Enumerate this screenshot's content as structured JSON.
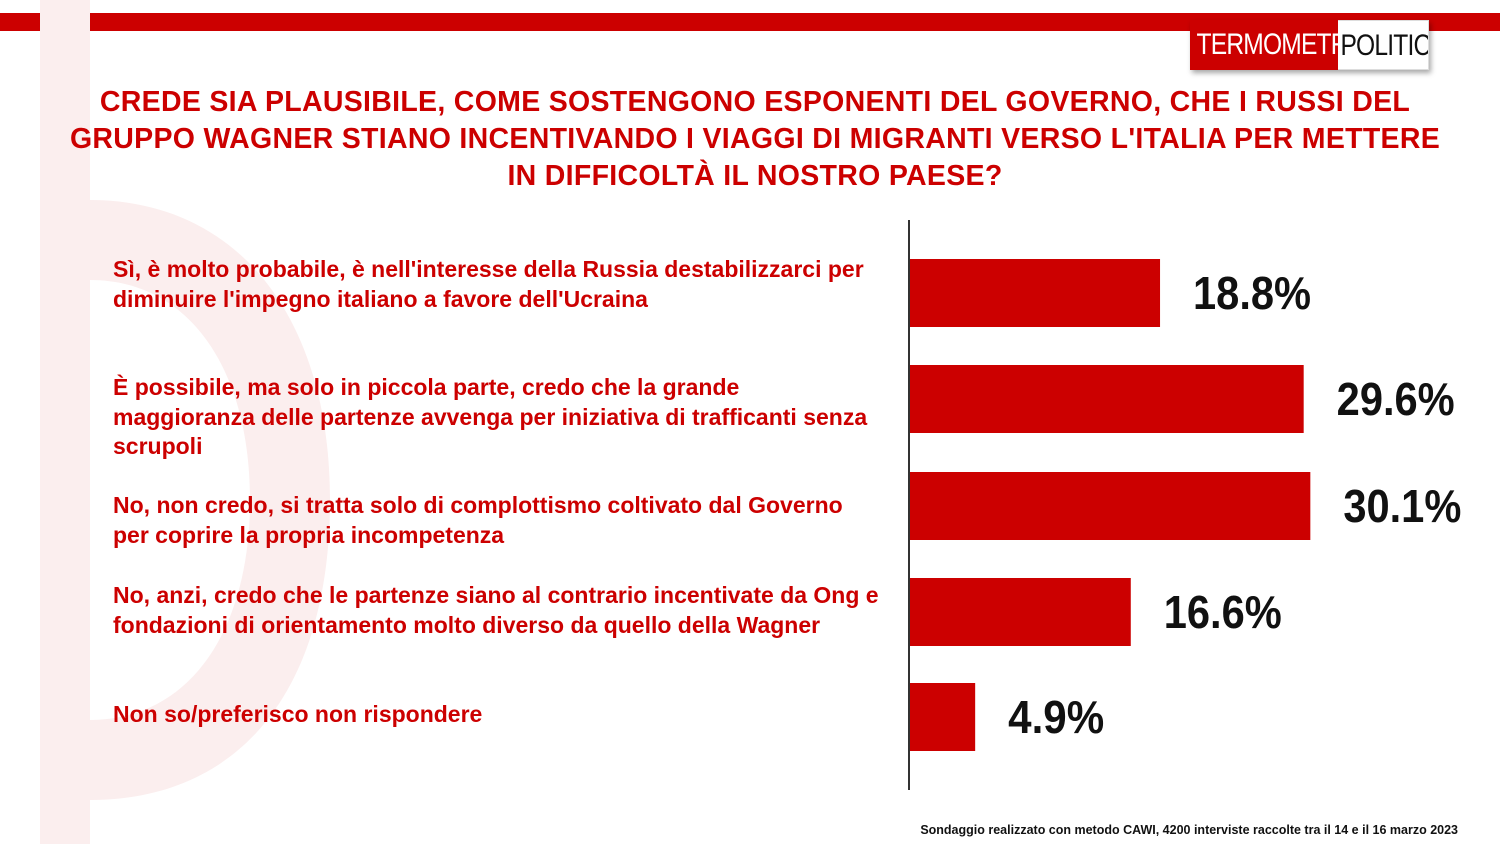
{
  "logo": {
    "part1": "TERMOMETRO",
    "part2": "POLITICO"
  },
  "title": "CREDE SIA PLAUSIBILE, COME SOSTENGONO ESPONENTI DEL GOVERNO, CHE I RUSSI DEL GRUPPO WAGNER STIANO INCENTIVANDO I VIAGGI DI MIGRANTI VERSO L'ITALIA PER METTERE IN DIFFICOLTÀ IL NOSTRO PAESE?",
  "footer": "Sondaggio realizzato con metodo CAWI, 4200 interviste raccolte tra il 14 e il 16 marzo 2023",
  "colors": {
    "accent": "#cc0000",
    "text_dark": "#111111"
  },
  "chart_data": {
    "type": "bar",
    "orientation": "horizontal",
    "categories": [
      "Sì, è molto probabile, è nell'interesse della Russia destabilizzarci per diminuire l'impegno italiano a favore dell'Ucraina",
      "È possibile, ma solo in piccola parte, credo che la grande maggioranza delle partenze avvenga per iniziativa di trafficanti senza scrupoli",
      "No, non credo, si tratta solo di complottismo coltivato dal Governo per coprire la propria incompetenza",
      "No, anzi, credo che le partenze siano al contrario incentivate da Ong e fondazioni di orientamento molto diverso da quello della Wagner",
      "Non so/preferisco non rispondere"
    ],
    "values": [
      18.8,
      29.6,
      30.1,
      16.6,
      4.9
    ],
    "value_labels": [
      "18.8%",
      "29.6%",
      "30.1%",
      "16.6%",
      "4.9%"
    ],
    "bar_color": "#cc0000",
    "legend": "none",
    "grid": false
  }
}
